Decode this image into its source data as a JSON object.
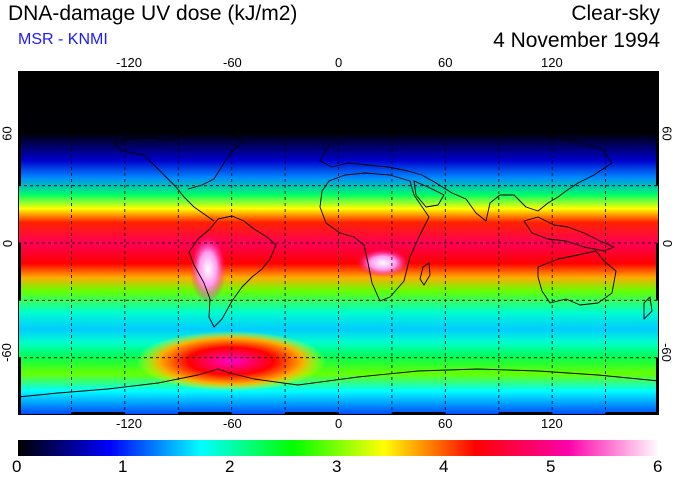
{
  "header": {
    "title": "DNA-damage UV dose (kJ/m2)",
    "source": "MSR - KNMI",
    "condition": "Clear-sky",
    "date": "4 November 1994"
  },
  "map": {
    "projection": "equirectangular",
    "lon_range": [
      -180,
      180
    ],
    "lat_range": [
      -90,
      90
    ],
    "graticule_spacing_deg": 30,
    "lon_ticks": [
      "-120",
      "-60",
      "0",
      "60",
      "120"
    ],
    "lat_ticks_left": [
      "60",
      "0",
      "-60"
    ],
    "lat_ticks_right": [
      "60",
      "0",
      "-60"
    ]
  },
  "colorbar": {
    "min": 0,
    "max": 6,
    "labels": [
      "0",
      "1",
      "2",
      "3",
      "4",
      "5",
      "6"
    ],
    "colors": [
      "#000000",
      "#0000ff",
      "#00ffff",
      "#00ff00",
      "#ffff00",
      "#ff0000",
      "#ff00aa",
      "#ffffff"
    ]
  }
}
